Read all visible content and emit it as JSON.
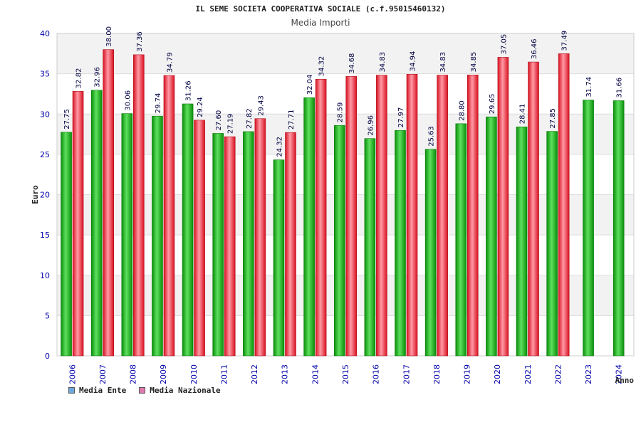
{
  "header": {
    "title": "IL SEME SOCIETA COOPERATIVA SOCIALE (c.f.95015460132)",
    "subtitle": "Media Importi"
  },
  "legend": {
    "ente_label": "Media Ente",
    "nazionale_label": "Media Nazionale",
    "ente_swatch_color": "#6fa8dc",
    "nazionale_swatch_color": "#e07ab0"
  },
  "colors": {
    "ente": "#11b611",
    "nazionale": "#ee2a3a",
    "axis_text": "#0000aa",
    "label_text": "#000044",
    "band": "#f2f2f2"
  },
  "chart_data": {
    "type": "bar",
    "title": "IL SEME SOCIETA COOPERATIVA SOCIALE (c.f.95015460132)",
    "subtitle": "Media Importi",
    "xlabel": "Anno",
    "ylabel": "Euro",
    "ylim": [
      0,
      40
    ],
    "yticks": [
      0,
      5,
      10,
      15,
      20,
      25,
      30,
      35,
      40
    ],
    "categories": [
      "2006",
      "2007",
      "2008",
      "2009",
      "2010",
      "2011",
      "2012",
      "2013",
      "2014",
      "2015",
      "2016",
      "2017",
      "2018",
      "2019",
      "2020",
      "2021",
      "2022",
      "2023",
      "2024"
    ],
    "series": [
      {
        "name": "Media Ente",
        "values": [
          27.75,
          32.96,
          30.06,
          29.74,
          31.26,
          27.6,
          27.82,
          24.32,
          32.04,
          28.59,
          26.96,
          27.97,
          25.63,
          28.8,
          29.65,
          28.41,
          27.85,
          31.74,
          31.66
        ],
        "labels": [
          "27.75",
          "32.96",
          "30.06",
          "29.74",
          "31.26",
          "27.60",
          "27.82",
          "24.32",
          "32.04",
          "28.59",
          "26.96",
          "27.97",
          "25.63",
          "28.80",
          "29.65",
          "28.41",
          "27.85",
          "31.74",
          "31.66"
        ]
      },
      {
        "name": "Media Nazionale",
        "values": [
          32.82,
          38.0,
          37.36,
          34.79,
          29.24,
          27.19,
          29.43,
          27.71,
          34.32,
          34.68,
          34.83,
          34.94,
          34.83,
          34.85,
          37.05,
          36.46,
          37.49,
          null,
          null
        ],
        "labels": [
          "32.82",
          "38.00",
          "37.36",
          "34.79",
          "29.24",
          "27.19",
          "29.43",
          "27.71",
          "34.32",
          "34.68",
          "34.83",
          "34.94",
          "34.83",
          "34.85",
          "37.05",
          "36.46",
          "37.49",
          null,
          null
        ]
      }
    ]
  }
}
